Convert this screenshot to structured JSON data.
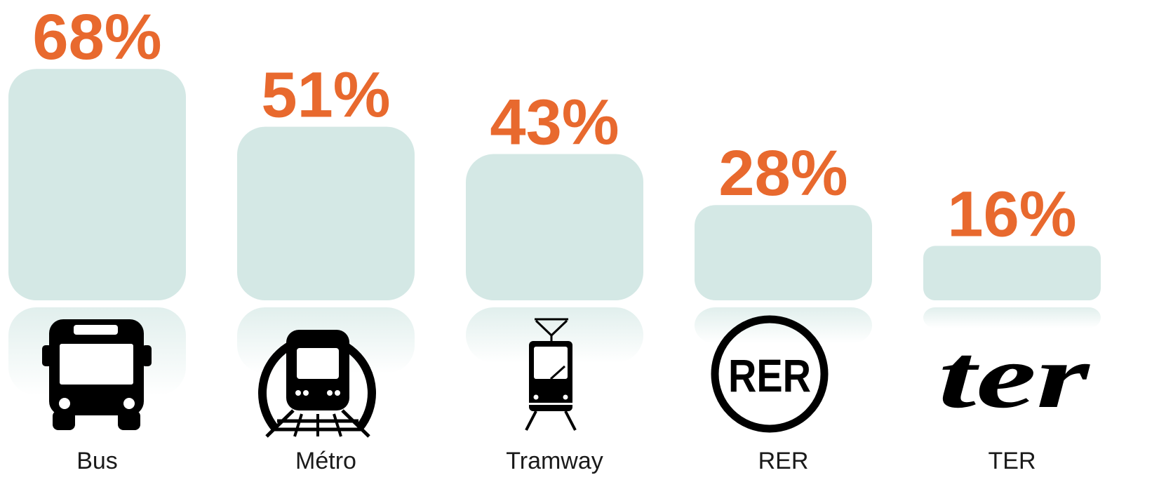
{
  "chart_data": {
    "type": "bar",
    "categories": [
      "Bus",
      "Métro",
      "Tramway",
      "RER",
      "TER"
    ],
    "values": [
      68,
      51,
      43,
      28,
      16
    ],
    "value_labels": [
      "68%",
      "51%",
      "43%",
      "28%",
      "16%"
    ],
    "color": "#d4e8e5",
    "label_color": "#e8692e"
  },
  "logos": [
    "RER",
    "ter"
  ]
}
